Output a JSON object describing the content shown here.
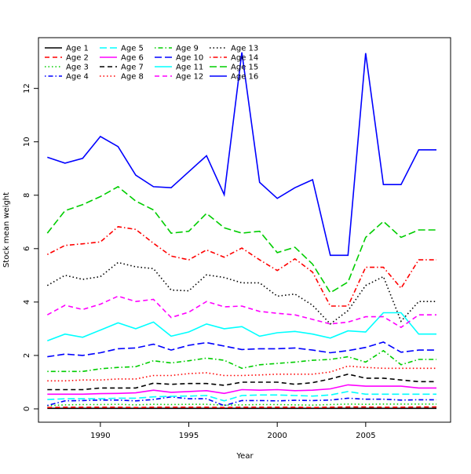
{
  "chart_data": {
    "type": "line",
    "title": "",
    "xlabel": "Year",
    "ylabel": "Stock mean weight",
    "xlim": [
      1986.5,
      2009.8
    ],
    "ylim": [
      -0.5,
      13.9
    ],
    "x_ticks": [
      1990,
      1995,
      2000,
      2005
    ],
    "y_ticks": [
      0,
      2,
      4,
      6,
      8,
      10,
      12
    ],
    "grid": false,
    "legend_position": "top-left",
    "legend_columns": 4,
    "x": [
      1987,
      1988,
      1989,
      1990,
      1991,
      1992,
      1993,
      1994,
      1995,
      1996,
      1997,
      1998,
      1999,
      2000,
      2001,
      2002,
      2003,
      2004,
      2005,
      2006,
      2007,
      2008,
      2009
    ],
    "series": [
      {
        "name": "Age 1",
        "color": "#000000",
        "dash": "solid",
        "values": [
          0.02,
          0.02,
          0.02,
          0.02,
          0.02,
          0.02,
          0.02,
          0.02,
          0.02,
          0.02,
          0.02,
          0.02,
          0.02,
          0.02,
          0.02,
          0.02,
          0.02,
          0.02,
          0.02,
          0.02,
          0.02,
          0.02,
          0.02
        ]
      },
      {
        "name": "Age 2",
        "color": "#ff0000",
        "dash": "dashed",
        "values": [
          0.05,
          0.06,
          0.06,
          0.06,
          0.06,
          0.05,
          0.06,
          0.06,
          0.06,
          0.06,
          0.05,
          0.06,
          0.06,
          0.06,
          0.06,
          0.05,
          0.06,
          0.07,
          0.07,
          0.06,
          0.06,
          0.07,
          0.07
        ]
      },
      {
        "name": "Age 3",
        "color": "#00cd00",
        "dash": "dotted",
        "values": [
          0.12,
          0.15,
          0.16,
          0.16,
          0.17,
          0.15,
          0.17,
          0.16,
          0.17,
          0.17,
          0.14,
          0.15,
          0.16,
          0.16,
          0.15,
          0.14,
          0.16,
          0.18,
          0.17,
          0.18,
          0.18,
          0.18,
          0.18
        ]
      },
      {
        "name": "Age 4",
        "color": "#0000ff",
        "dash": "dotdash",
        "values": [
          0.13,
          0.3,
          0.31,
          0.33,
          0.33,
          0.3,
          0.35,
          0.45,
          0.38,
          0.38,
          0.12,
          0.31,
          0.31,
          0.3,
          0.32,
          0.31,
          0.33,
          0.4,
          0.36,
          0.36,
          0.33,
          0.34,
          0.34
        ]
      },
      {
        "name": "Age 5",
        "color": "#00ffff",
        "dash": "longdash",
        "values": [
          0.35,
          0.38,
          0.38,
          0.38,
          0.4,
          0.4,
          0.45,
          0.47,
          0.48,
          0.5,
          0.3,
          0.5,
          0.52,
          0.52,
          0.5,
          0.48,
          0.52,
          0.65,
          0.55,
          0.55,
          0.55,
          0.55,
          0.55
        ]
      },
      {
        "name": "Age 6",
        "color": "#ff00ff",
        "dash": "solid",
        "values": [
          0.55,
          0.55,
          0.55,
          0.57,
          0.58,
          0.6,
          0.7,
          0.62,
          0.65,
          0.68,
          0.58,
          0.72,
          0.7,
          0.72,
          0.68,
          0.7,
          0.75,
          0.9,
          0.85,
          0.85,
          0.85,
          0.78,
          0.78
        ]
      },
      {
        "name": "Age 7",
        "color": "#000000",
        "dash": "dashed",
        "values": [
          0.72,
          0.72,
          0.72,
          0.78,
          0.78,
          0.78,
          0.96,
          0.92,
          0.95,
          0.95,
          0.88,
          1.0,
          1.0,
          1.0,
          0.92,
          0.98,
          1.12,
          1.3,
          1.15,
          1.15,
          1.08,
          1.02,
          1.02
        ]
      },
      {
        "name": "Age 8",
        "color": "#ff0000",
        "dash": "dotted",
        "values": [
          1.05,
          1.05,
          1.08,
          1.08,
          1.12,
          1.12,
          1.25,
          1.25,
          1.32,
          1.35,
          1.25,
          1.25,
          1.27,
          1.3,
          1.3,
          1.3,
          1.38,
          1.6,
          1.55,
          1.52,
          1.52,
          1.52,
          1.52
        ]
      },
      {
        "name": "Age 9",
        "color": "#00cd00",
        "dash": "dotdash",
        "values": [
          1.4,
          1.4,
          1.4,
          1.5,
          1.55,
          1.58,
          1.8,
          1.72,
          1.8,
          1.9,
          1.82,
          1.52,
          1.65,
          1.7,
          1.75,
          1.82,
          1.85,
          1.95,
          1.75,
          2.18,
          1.65,
          1.85,
          1.85
        ]
      },
      {
        "name": "Age 10",
        "color": "#0000ff",
        "dash": "longdash",
        "values": [
          1.95,
          2.05,
          2.0,
          2.1,
          2.25,
          2.28,
          2.42,
          2.2,
          2.38,
          2.48,
          2.35,
          2.22,
          2.25,
          2.25,
          2.28,
          2.2,
          2.1,
          2.18,
          2.3,
          2.5,
          2.12,
          2.2,
          2.2
        ]
      },
      {
        "name": "Age 11",
        "color": "#00ffff",
        "dash": "solid",
        "values": [
          2.55,
          2.8,
          2.68,
          2.95,
          3.22,
          3.0,
          3.25,
          2.72,
          2.88,
          3.18,
          3.0,
          3.08,
          2.72,
          2.85,
          2.9,
          2.8,
          2.65,
          2.92,
          2.88,
          3.6,
          3.6,
          2.8,
          2.8
        ]
      },
      {
        "name": "Age 12",
        "color": "#ff00ff",
        "dash": "dashed",
        "values": [
          3.52,
          3.88,
          3.72,
          3.92,
          4.22,
          4.02,
          4.1,
          3.42,
          3.62,
          4.02,
          3.82,
          3.85,
          3.65,
          3.58,
          3.52,
          3.35,
          3.18,
          3.25,
          3.45,
          3.45,
          3.05,
          3.52,
          3.52
        ]
      },
      {
        "name": "Age 13",
        "color": "#000000",
        "dash": "dotted",
        "values": [
          4.62,
          5.0,
          4.85,
          4.95,
          5.48,
          5.32,
          5.25,
          4.45,
          4.42,
          5.02,
          4.92,
          4.72,
          4.72,
          4.22,
          4.3,
          3.88,
          3.18,
          3.68,
          4.62,
          4.95,
          3.28,
          4.02,
          4.02
        ]
      },
      {
        "name": "Age 14",
        "color": "#ff0000",
        "dash": "dotdash",
        "values": [
          5.78,
          6.12,
          6.18,
          6.25,
          6.82,
          6.72,
          6.2,
          5.72,
          5.58,
          5.95,
          5.68,
          6.02,
          5.58,
          5.18,
          5.62,
          5.12,
          3.85,
          3.85,
          5.3,
          5.3,
          4.52,
          5.58,
          5.58
        ]
      },
      {
        "name": "Age 15",
        "color": "#00cd00",
        "dash": "longdash",
        "values": [
          6.58,
          7.42,
          7.65,
          7.95,
          8.32,
          7.78,
          7.45,
          6.58,
          6.65,
          7.32,
          6.78,
          6.58,
          6.65,
          5.85,
          6.05,
          5.42,
          4.35,
          4.75,
          6.42,
          7.02,
          6.42,
          6.7,
          6.7
        ]
      },
      {
        "name": "Age 16",
        "color": "#0000ff",
        "dash": "solid",
        "values": [
          9.42,
          9.2,
          9.38,
          10.2,
          9.82,
          8.75,
          8.32,
          8.28,
          8.88,
          9.48,
          8.02,
          13.35,
          8.48,
          7.88,
          8.28,
          8.58,
          5.75,
          5.75,
          13.32,
          8.4,
          8.4,
          9.7,
          9.7
        ]
      }
    ]
  }
}
